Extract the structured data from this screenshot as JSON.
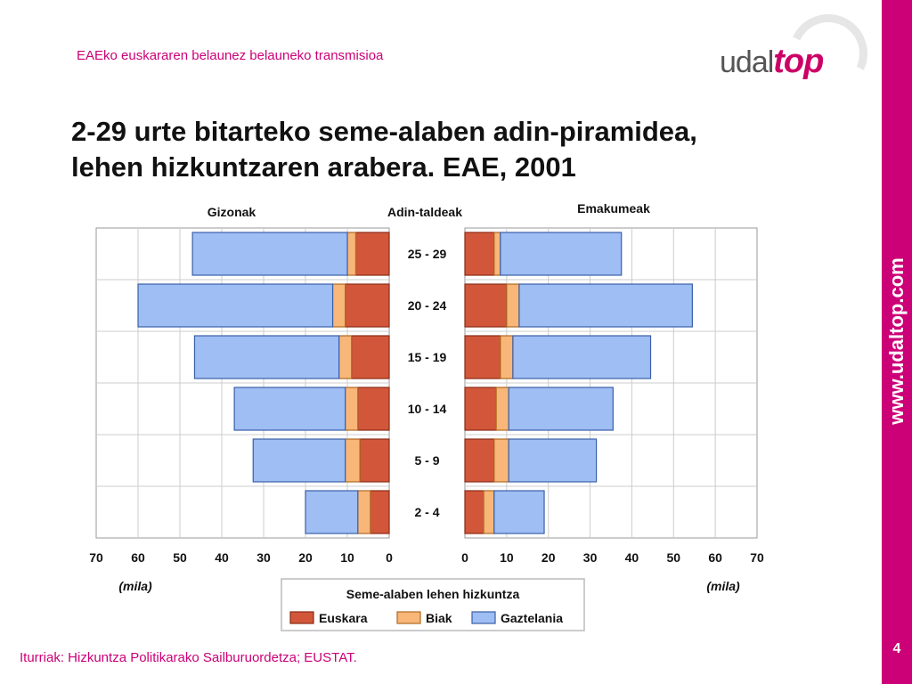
{
  "header": {
    "subtitle": "EAEko euskararen belaunez belauneko transmisioa"
  },
  "logo": {
    "part1": "udal",
    "part2": "top"
  },
  "title_line1": "2-29 urte bitarteko seme-alaben adin-piramidea,",
  "title_line2": "lehen hizkuntzaren arabera. EAE, 2001",
  "side": {
    "url": "www.udaltop.com",
    "page_number": "4"
  },
  "source": "Iturriak: Hizkuntza Politikarako Sailburuordetza; EUSTAT.",
  "colors": {
    "euskara": "#d2573a",
    "biak": "#f8b779",
    "gaztelania": "#9ebef4",
    "brand": "#cc0077"
  },
  "chart_data": {
    "type": "bar",
    "subtype": "population-pyramid",
    "left_label": "Gizonak",
    "center_label": "Adin-taldeak",
    "right_label": "Emakumeak",
    "left_unit": "(mila)",
    "right_unit": "(mila)",
    "categories": [
      "25 - 29",
      "20 - 24",
      "15 - 19",
      "10 - 14",
      "5 - 9",
      "2 - 4"
    ],
    "xlim": [
      0,
      70
    ],
    "x_ticks_left": [
      "70",
      "60",
      "50",
      "40",
      "30",
      "20",
      "10",
      "0"
    ],
    "x_ticks_right": [
      "0",
      "10",
      "20",
      "30",
      "40",
      "50",
      "60",
      "70"
    ],
    "legend_title": "Seme-alaben lehen hizkuntza",
    "series": [
      {
        "name": "Euskara",
        "gizonak": [
          8.0,
          10.5,
          9.0,
          7.5,
          7.0,
          4.5
        ],
        "emakumeak": [
          7.0,
          10.0,
          8.5,
          7.5,
          7.0,
          4.5
        ]
      },
      {
        "name": "Biak",
        "gizonak": [
          2.0,
          3.0,
          3.0,
          3.0,
          3.5,
          3.0
        ],
        "emakumeak": [
          1.5,
          3.0,
          3.0,
          3.0,
          3.5,
          2.5
        ]
      },
      {
        "name": "Gaztelania",
        "gizonak": [
          37.0,
          46.5,
          34.5,
          26.5,
          22.0,
          12.5
        ],
        "emakumeak": [
          29.0,
          41.5,
          33.0,
          25.0,
          21.0,
          12.0
        ]
      }
    ]
  }
}
